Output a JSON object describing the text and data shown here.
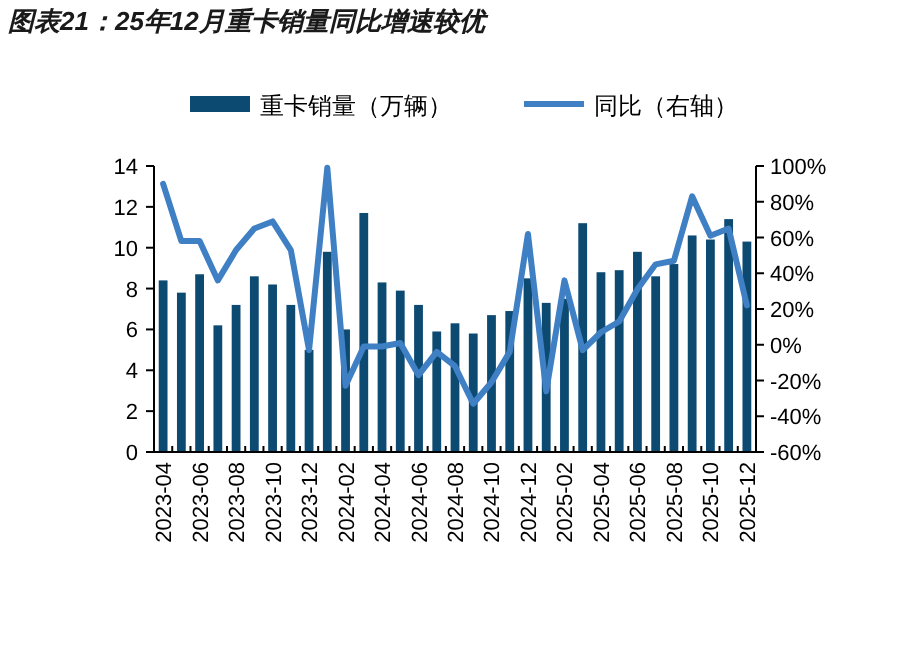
{
  "chart_data": {
    "type": "bar",
    "title": "图表21：25年12月重卡销量同比增速较优",
    "categories": [
      "2023-04",
      null,
      "2023-06",
      null,
      "2023-08",
      null,
      "2023-10",
      null,
      "2023-12",
      null,
      "2024-02",
      null,
      "2024-04",
      null,
      "2024-06",
      null,
      "2024-08",
      null,
      "2024-10",
      null,
      "2024-12",
      null,
      "2025-02",
      null,
      "2025-04",
      null,
      "2025-06",
      null,
      "2025-08",
      null,
      "2025-10",
      null,
      "2025-12"
    ],
    "series": [
      {
        "name": "重卡销量（万辆）",
        "color": "#0d4a72",
        "values": [
          8.4,
          7.8,
          8.7,
          6.2,
          7.2,
          8.6,
          8.2,
          7.2,
          5.0,
          9.8,
          6.0,
          11.7,
          8.3,
          7.9,
          7.2,
          5.9,
          6.3,
          5.8,
          6.7,
          6.9,
          8.5,
          7.3,
          7.5,
          11.2,
          8.8,
          8.9,
          9.8,
          8.6,
          9.2,
          10.6,
          10.4,
          11.4,
          10.3
        ]
      },
      {
        "name": "同比（右轴）",
        "type": "line",
        "axis": "y2",
        "color": "#3f7fc4",
        "values": [
          90,
          58,
          58,
          36,
          53,
          65,
          69,
          53,
          -3,
          99,
          -23,
          -1,
          -1,
          1,
          -17,
          -4,
          -12,
          -33,
          -21,
          -4,
          62,
          -26,
          36,
          -3,
          7,
          13,
          31,
          45,
          47,
          83,
          61,
          65,
          22
        ]
      }
    ],
    "ylim": [
      0,
      14
    ],
    "yticks": [
      0,
      2,
      4,
      6,
      8,
      10,
      12,
      14
    ],
    "y2lim": [
      -60,
      100
    ],
    "y2ticks": [
      {
        "value": -60,
        "label": "-60%"
      },
      {
        "value": -40,
        "label": "-40%"
      },
      {
        "value": -20,
        "label": "-20%"
      },
      {
        "value": 0,
        "label": "0%"
      },
      {
        "value": 20,
        "label": "20%"
      },
      {
        "value": 40,
        "label": "40%"
      },
      {
        "value": 60,
        "label": "60%"
      },
      {
        "value": 80,
        "label": "80%"
      },
      {
        "value": 100,
        "label": "100%"
      }
    ],
    "legend": "top",
    "grid": false
  }
}
